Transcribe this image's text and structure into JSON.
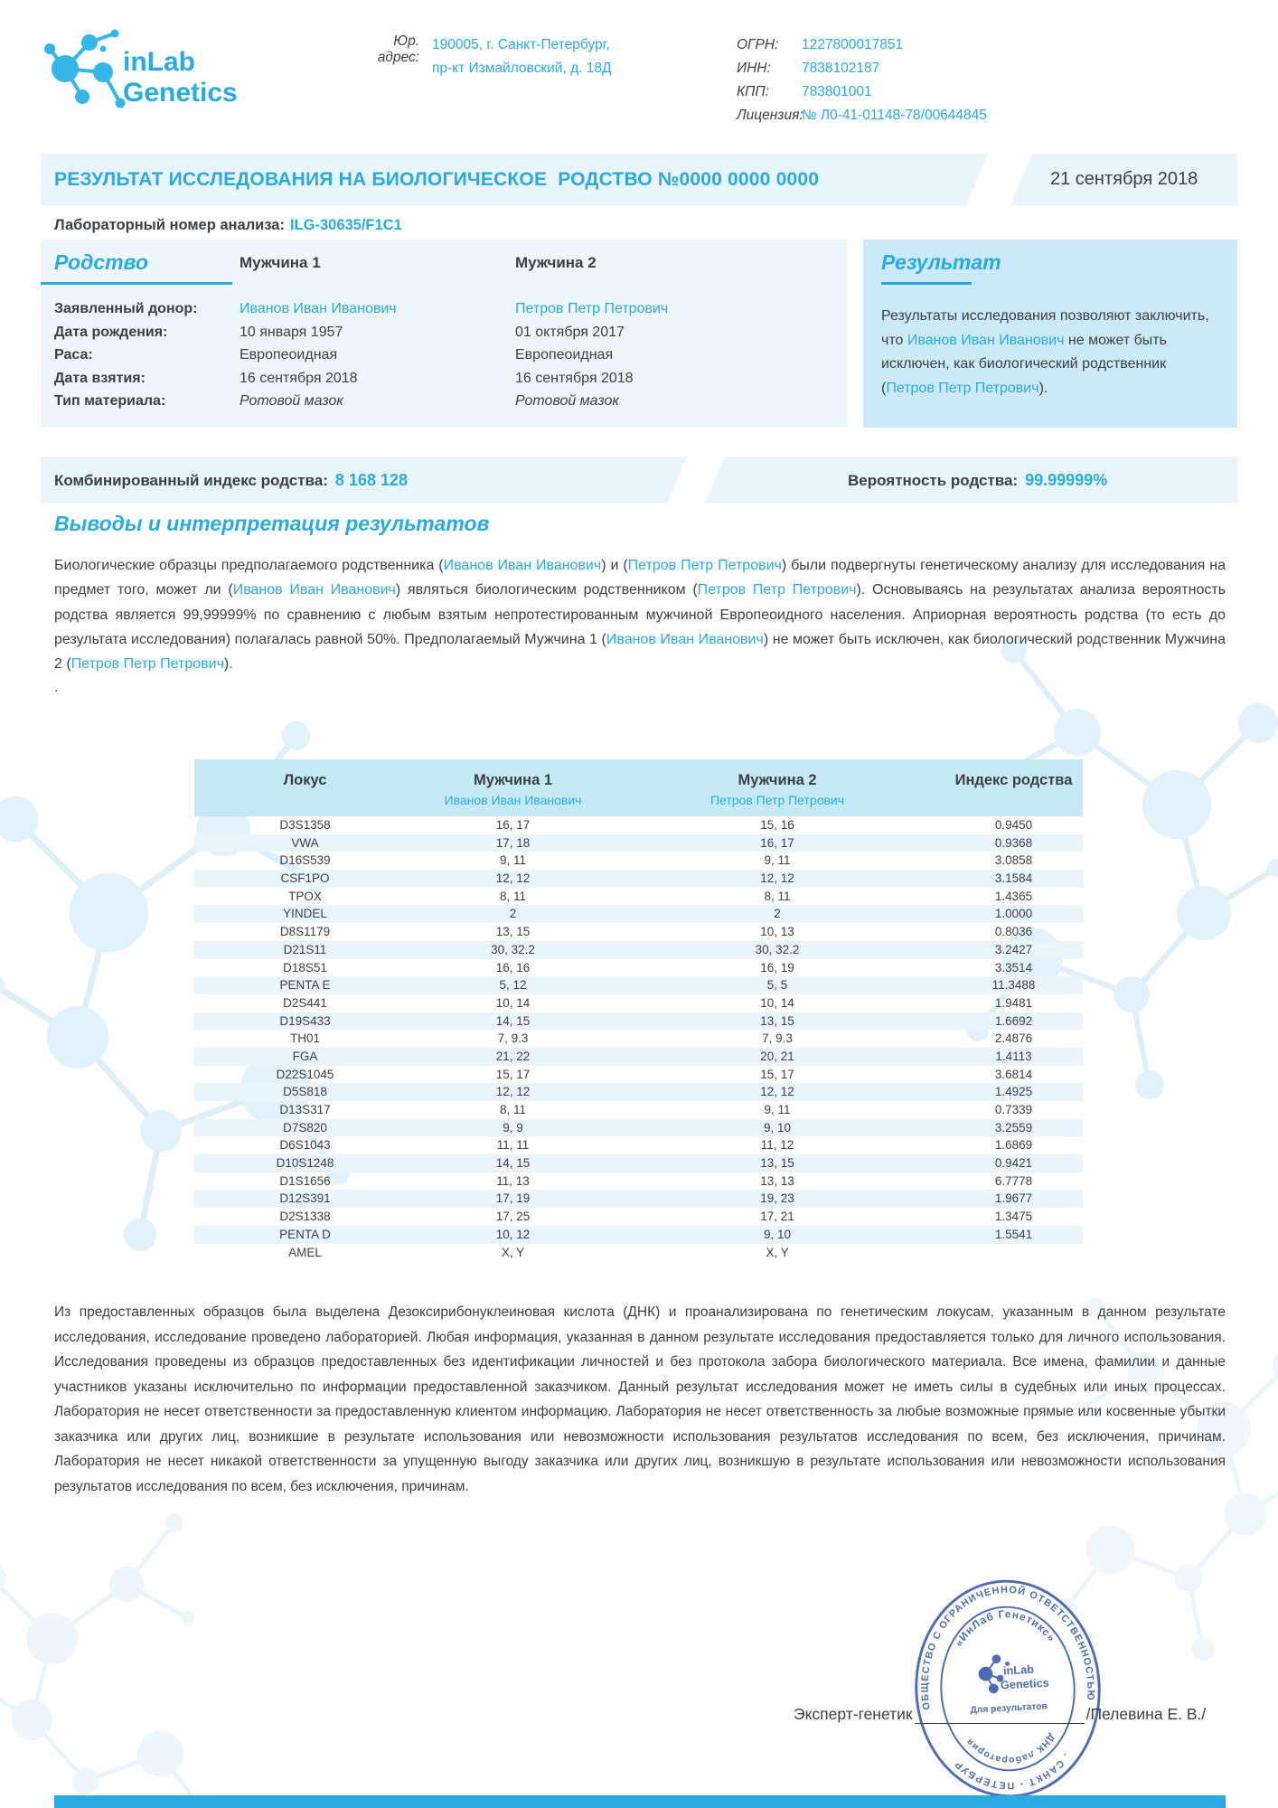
{
  "brand": {
    "line1": "inLab",
    "line2": "Genetics"
  },
  "header": {
    "address_label": "Юр. адрес:",
    "address_line1": "190005, г. Санкт-Петербург,",
    "address_line2": "пр-кт Измайловский, д. 18Д",
    "registry": [
      {
        "label": "ОГРН:",
        "value": "1227800017851"
      },
      {
        "label": "ИНН:",
        "value": "7838102187"
      },
      {
        "label": "КПП:",
        "value": "783801001"
      },
      {
        "label": "Лицензия:",
        "value": "№ Л0-41-01148-78/00644845"
      }
    ]
  },
  "title": {
    "text": "РЕЗУЛЬТАТ ИССЛЕДОВАНИЯ НА БИОЛОГИЧЕСКОЕ  РОДСТВО №0000 0000 0000",
    "date": "21 сентября 2018"
  },
  "lab_number": {
    "label": "Лабораторный номер анализа:",
    "value": "ILG-30635/F1C1"
  },
  "relationship": {
    "heading": "Родство",
    "col1": "Мужчина 1",
    "col2": "Мужчина 2",
    "rows": [
      {
        "label": "Заявленный донор:",
        "m1": "Иванов Иван Иванович",
        "m2": "Петров Петр Петрович",
        "style": "accent"
      },
      {
        "label": "Дата рождения:",
        "m1": "10 января 1957",
        "m2": "01 октября 2017",
        "style": "normal"
      },
      {
        "label": "Раса:",
        "m1": "Европеоидная",
        "m2": "Европеоидная",
        "style": "normal"
      },
      {
        "label": "Дата взятия:",
        "m1": "16 сентября 2018",
        "m2": "16 сентября 2018",
        "style": "normal"
      },
      {
        "label": "Тип материала:",
        "m1": "Ротовой мазок",
        "m2": "Ротовой мазок",
        "style": "italic"
      }
    ]
  },
  "result": {
    "heading": "Результат",
    "segments": [
      {
        "t": "Результаты исследования позволяют заключить, что "
      },
      {
        "t": "Иванов Иван Иванович",
        "a": true
      },
      {
        "t": " не может быть исключен, как биологический родственник ("
      },
      {
        "t": "Петров Петр Петрович",
        "a": true
      },
      {
        "t": ")."
      }
    ]
  },
  "metrics": {
    "index_label": "Комбинированный индекс родства:",
    "index_value": "8 168 128",
    "probability_label": "Вероятность родства:",
    "probability_value": "99.99999%"
  },
  "conclusions": {
    "heading": "Выводы и интерпретация результатов",
    "segments": [
      {
        "t": "Биологические образцы предполагаемого родственника ("
      },
      {
        "t": "Иванов Иван Иванович",
        "a": true
      },
      {
        "t": ") и ("
      },
      {
        "t": "Петров Петр Петрович",
        "a": true
      },
      {
        "t": ") были подвергнуты генетическому анализу для исследования на предмет того, может ли ("
      },
      {
        "t": "Иванов Иван Иванович",
        "a": true
      },
      {
        "t": ") являться биологическим родственником ("
      },
      {
        "t": "Петров Петр Петрович",
        "a": true
      },
      {
        "t": "). Основываясь на результатах анализа вероятность родства является 99,99999% по сравнению с любым взятым непротестированным мужчиной Европеоидного населения. Априорная вероятность родства (то есть до результата исследования) полагалась равной 50%. Предполагаемый Мужчина 1 ("
      },
      {
        "t": "Иванов Иван Иванович",
        "a": true
      },
      {
        "t": ") не может быть исключен, как биологический родственник Мужчина 2 ("
      },
      {
        "t": "Петров Петр Петрович",
        "a": true
      },
      {
        "t": ")."
      }
    ],
    "trailing_dot": "."
  },
  "locus_table": {
    "headers": {
      "locus": "Локус",
      "m1": "Мужчина 1",
      "m1_name": "Иванов Иван Иванович",
      "m2": "Мужчина 2",
      "m2_name": "Петров Петр Петрович",
      "index": "Индекс родства"
    },
    "rows": [
      [
        "D3S1358",
        "16, 17",
        "15, 16",
        "0.9450"
      ],
      [
        "VWA",
        "17, 18",
        "16, 17",
        "0.9368"
      ],
      [
        "D16S539",
        "9, 11",
        "9, 11",
        "3.0858"
      ],
      [
        "CSF1PO",
        "12, 12",
        "12, 12",
        "3.1584"
      ],
      [
        "TPOX",
        "8, 11",
        "8, 11",
        "1.4365"
      ],
      [
        "YINDEL",
        "2",
        "2",
        "1.0000"
      ],
      [
        "D8S1179",
        "13, 15",
        "10, 13",
        "0.8036"
      ],
      [
        "D21S11",
        "30, 32.2",
        "30, 32.2",
        "3.2427"
      ],
      [
        "D18S51",
        "16, 16",
        "16, 19",
        "3.3514"
      ],
      [
        "PENTA E",
        "5, 12",
        "5, 5",
        "11.3488"
      ],
      [
        "D2S441",
        "10, 14",
        "10, 14",
        "1.9481"
      ],
      [
        "D19S433",
        "14, 15",
        "13, 15",
        "1.6692"
      ],
      [
        "TH01",
        "7, 9.3",
        "7, 9.3",
        "2.4876"
      ],
      [
        "FGA",
        "21, 22",
        "20, 21",
        "1.4113"
      ],
      [
        "D22S1045",
        "15, 17",
        "15, 17",
        "3.6814"
      ],
      [
        "D5S818",
        "12, 12",
        "12, 12",
        "1.4925"
      ],
      [
        "D13S317",
        "8, 11",
        "9, 11",
        "0.7339"
      ],
      [
        "D7S820",
        "9, 9",
        "9, 10",
        "3.2559"
      ],
      [
        "D6S1043",
        "11, 11",
        "11, 12",
        "1.6869"
      ],
      [
        "D10S1248",
        "14, 15",
        "13, 15",
        "0.9421"
      ],
      [
        "D1S1656",
        "11, 13",
        "13, 13",
        "6.7778"
      ],
      [
        "D12S391",
        "17, 19",
        "19, 23",
        "1.9677"
      ],
      [
        "D2S1338",
        "17, 25",
        "17, 21",
        "1.3475"
      ],
      [
        "PENTA D",
        "10, 12",
        "9, 10",
        "1.5541"
      ],
      [
        "AMEL",
        "X, Y",
        "X, Y",
        ""
      ]
    ]
  },
  "disclaimer": "Из предоставленных образцов была выделена Дезоксирибонуклеиновая кислота (ДНК) и проанализирована по генетическим локусам, указанным в данном результате исследования, исследование проведено лабораторией. Любая информация, указанная в данном результате исследования предоставляется только для личного использования. Исследования проведены из образцов предоставленных без идентификации личностей и без протокола забора биологического материала.  Все имена, фамилии и данные участников указаны исключительно по информации предоставленной заказчиком. Данный результат исследования может не иметь силы в судебных или иных процессах. Лаборатория не несет ответственности за предоставленную клиентом информацию. Лаборатория не несет ответственность за любые возможные прямые или косвенные убытки заказчика или других лиц, возникшие в результате использования или невозможности использования результатов исследования по всем, без исключения, причинам.  Лаборатория не несет никакой ответственности за упущенную выгоду заказчика или других лиц, возникшую в результате использования или невозможности использования результатов исследования по всем, без исключения, причинам.",
  "signature": {
    "role": "Эксперт-генетик",
    "name": "/Пелевина Е. В./"
  },
  "stamp": {
    "outer_top": "ОБЩЕСТВО С ОГРАНИЧЕННОЙ ОТВЕТСТВЕННОСТЬЮ",
    "outer_bottom": "Г. САНКТ - ПЕТЕРБУРГ",
    "inner_top": "«ИнЛаб Генетикс»",
    "inner_bottom": "ДНК лаборатория",
    "center_line1": "inLab",
    "center_line2": "Genetics",
    "center_line3": "Для результатов"
  },
  "colors": {
    "accent": "#29ABE2",
    "band_light": "#E9F5FC",
    "panel_relationship": "#EDF6FB",
    "panel_result": "#CBE9F8",
    "table_header": "#C6E9F8",
    "row_alt": "#E9F5FC",
    "text_dark": "#3C4043",
    "stamp_blue": "#3F63B0"
  }
}
